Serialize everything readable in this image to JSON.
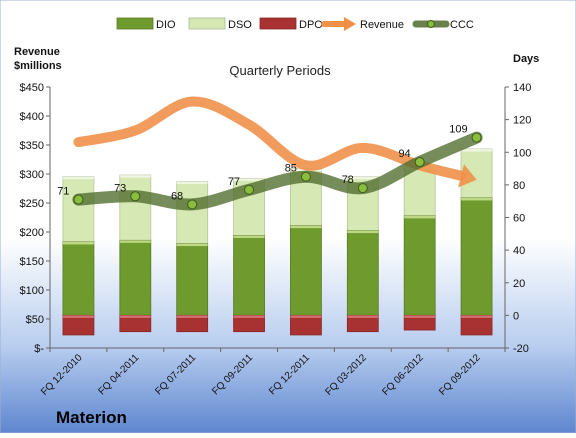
{
  "chart_data": {
    "type": "bar",
    "title": "Quarterly Periods",
    "company": "Materion",
    "left_axis_label_line1": "Revenue",
    "left_axis_label_line2": "$millions",
    "right_axis_label": "Days",
    "legend_placement": "top",
    "grid": false,
    "categories": [
      "FQ 12-2010",
      "FQ 04-2011",
      "FQ 07-2011",
      "FQ 09-2011",
      "FQ 12-2011",
      "FQ 03-2012",
      "FQ 06-2012",
      "FQ 09-2012"
    ],
    "left_axis": {
      "ylim": [
        0,
        450
      ],
      "ticks": [
        0,
        50,
        100,
        150,
        200,
        250,
        300,
        350,
        400,
        450
      ],
      "tick_labels": [
        "$-",
        "$50",
        "$100",
        "$150",
        "$200",
        "$250",
        "$300",
        "$350",
        "$400",
        "$450"
      ]
    },
    "right_axis": {
      "ylim": [
        -20,
        140
      ],
      "ticks": [
        -20,
        0,
        20,
        40,
        60,
        80,
        100,
        120,
        140
      ],
      "tick_labels": [
        "-20",
        "0",
        "20",
        "40",
        "60",
        "80",
        "100",
        "120",
        "140"
      ]
    },
    "series": [
      {
        "name": "DIO",
        "type": "bar",
        "axis": "right",
        "color": "#6e9a2e",
        "values": [
          45,
          46,
          44,
          49,
          55,
          52,
          61,
          72
        ]
      },
      {
        "name": "DSO",
        "type": "bar",
        "axis": "right",
        "color": "#d6e8b4",
        "values": [
          40,
          40,
          38,
          35,
          35,
          33,
          30,
          30
        ]
      },
      {
        "name": "DPO",
        "type": "bar",
        "axis": "right",
        "color": "#a83232",
        "values": [
          -12,
          -10,
          -10,
          -10,
          -12,
          -10,
          -9,
          -12
        ]
      },
      {
        "name": "Revenue",
        "type": "line",
        "axis": "left",
        "color": "#f0914a",
        "values": [
          355,
          375,
          425,
          385,
          315,
          345,
          315,
          290
        ]
      },
      {
        "name": "CCC",
        "type": "line",
        "axis": "right",
        "color": "#4f6b2c",
        "values": [
          71,
          73,
          68,
          77,
          85,
          78,
          94,
          109
        ],
        "labels": [
          "71",
          "73",
          "68",
          "77",
          "85",
          "78",
          "94",
          "109"
        ]
      }
    ]
  }
}
